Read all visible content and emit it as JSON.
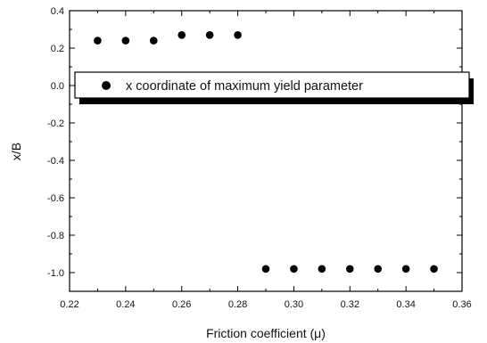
{
  "chart_data": {
    "type": "scatter",
    "title": "",
    "xlabel": "Friction coefficient (μ)",
    "ylabel": "x/B",
    "xlim": [
      0.22,
      0.36
    ],
    "ylim": [
      -1.1,
      0.4
    ],
    "x_ticks": [
      "0.22",
      "0.24",
      "0.26",
      "0.28",
      "0.30",
      "0.32",
      "0.34",
      "0.36"
    ],
    "y_ticks": [
      "0.4",
      "0.2",
      "0.0",
      "-0.2",
      "-0.4",
      "-0.6",
      "-0.8",
      "-1.0"
    ],
    "x_tick_values": [
      0.22,
      0.24,
      0.26,
      0.28,
      0.3,
      0.32,
      0.34,
      0.36
    ],
    "y_tick_values": [
      0.4,
      0.2,
      0.0,
      -0.2,
      -0.4,
      -0.6,
      -0.8,
      -1.0
    ],
    "grid": false,
    "legend_position": "top",
    "series": [
      {
        "name": "x coordinate of maximum yield parameter",
        "marker": "filled-circle",
        "color": "#000000",
        "x": [
          0.23,
          0.24,
          0.25,
          0.26,
          0.27,
          0.28,
          0.29,
          0.3,
          0.31,
          0.32,
          0.33,
          0.34,
          0.35
        ],
        "y": [
          0.24,
          0.24,
          0.24,
          0.27,
          0.27,
          0.27,
          -0.98,
          -0.98,
          -0.98,
          -0.98,
          -0.98,
          -0.98,
          -0.98
        ]
      }
    ]
  }
}
